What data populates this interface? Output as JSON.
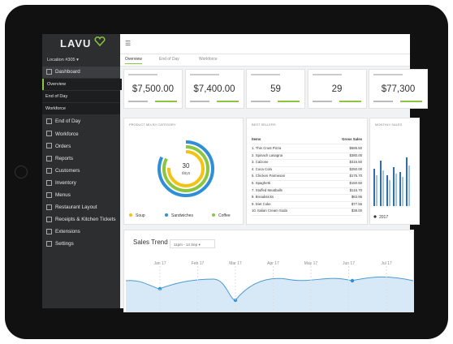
{
  "sidebar": {
    "logo": "LAVU",
    "location": "Location #305",
    "items": [
      {
        "label": "Dashboard",
        "level": 0
      },
      {
        "label": "Overview",
        "level": 1
      },
      {
        "label": "End of Day",
        "level": 1
      },
      {
        "label": "Workforce",
        "level": 1
      },
      {
        "label": "End of Day",
        "level": 0
      },
      {
        "label": "Workforce",
        "level": 0
      },
      {
        "label": "Orders",
        "level": 0
      },
      {
        "label": "Reports",
        "level": 0
      },
      {
        "label": "Customers",
        "level": 0
      },
      {
        "label": "Inventory",
        "level": 0
      },
      {
        "label": "Menus",
        "level": 0
      },
      {
        "label": "Restaurant Layout",
        "level": 0
      },
      {
        "label": "Receipts & Kitchen Tickets",
        "level": 0
      },
      {
        "label": "Extensions",
        "level": 0
      },
      {
        "label": "Settings",
        "level": 0
      }
    ]
  },
  "tabs": [
    "Overview",
    "End of Day",
    "Workforce"
  ],
  "cards": [
    "$7,500.00",
    "$7,400.00",
    "59",
    "29",
    "$77,300"
  ],
  "product_mix": {
    "title": "PRODUCT MIX BY CATEGORY",
    "center_value": "30",
    "center_label": "days",
    "legend": [
      {
        "label": "Soup",
        "color": "#f2c314"
      },
      {
        "label": "Sandwiches",
        "color": "#2e8fd6"
      },
      {
        "label": "Coffee",
        "color": "#8cc63f"
      }
    ]
  },
  "best_sellers": {
    "title": "BEST SELLERS",
    "columns": [
      "Items",
      "Gross Sales"
    ],
    "rows": [
      [
        "1. Thin Crust Pizza",
        "$585.50"
      ],
      [
        "2. Spinach Lasagna",
        "$380.00"
      ],
      [
        "3. Calzone",
        "$315.50"
      ],
      [
        "4. Coca Cola",
        "$250.00"
      ],
      [
        "5. Chicken Parmesan",
        "$175.70"
      ],
      [
        "6. Spaghetti",
        "$150.50"
      ],
      [
        "7. Stuffed Meatballs",
        "$115.70"
      ],
      [
        "8. Breadsticks",
        "$63.95"
      ],
      [
        "9. Diet Coke",
        "$77.55"
      ],
      [
        "10. Italian Cream Soda",
        "$38.00"
      ]
    ]
  },
  "monthly_sales": {
    "title": "MONTHLY SALES",
    "legend": "2017"
  },
  "sales_trend": {
    "title": "Sales Trend",
    "range": "11pm - 13 Sep",
    "months": [
      "Jan 17",
      "Feb 17",
      "Mar 17",
      "Apr 17",
      "May 17",
      "Jun 17",
      "Jul 17"
    ]
  }
}
